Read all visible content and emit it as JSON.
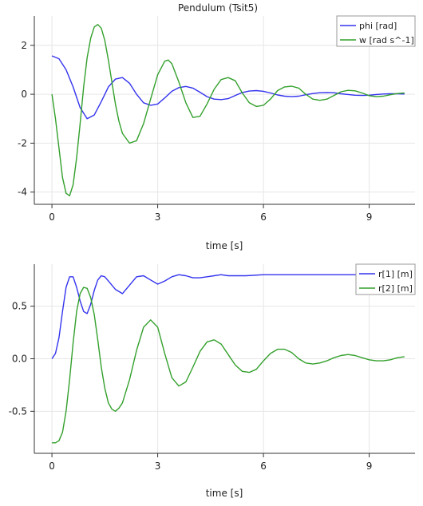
{
  "chart_data": [
    {
      "type": "line",
      "title": "Pendulum (Tsit5)",
      "xlabel": "time [s]",
      "ylabel": "",
      "xlim": [
        -0.5,
        10.3
      ],
      "ylim": [
        -4.5,
        3.2
      ],
      "xticks": [
        0,
        3,
        6,
        9
      ],
      "yticks": [
        -4,
        -2,
        0,
        2
      ],
      "ytick_labels": [
        "-4",
        "-2",
        "0",
        "2"
      ],
      "grid": true,
      "legend": "top-right",
      "series": [
        {
          "name": "phi [rad]",
          "color": "#3333ee",
          "x": [
            0,
            0.2,
            0.4,
            0.6,
            0.8,
            1.0,
            1.2,
            1.4,
            1.6,
            1.8,
            2.0,
            2.2,
            2.4,
            2.6,
            2.8,
            3.0,
            3.2,
            3.4,
            3.6,
            3.8,
            4.0,
            4.2,
            4.4,
            4.6,
            4.8,
            5.0,
            5.2,
            5.4,
            5.6,
            5.8,
            6.0,
            6.2,
            6.4,
            6.6,
            6.8,
            7.0,
            7.2,
            7.4,
            7.6,
            7.8,
            8.0,
            8.2,
            8.4,
            8.6,
            8.8,
            9.0,
            9.2,
            9.4,
            9.6,
            9.8,
            10.0
          ],
          "y": [
            1.57,
            1.45,
            1.0,
            0.3,
            -0.55,
            -1.0,
            -0.85,
            -0.3,
            0.3,
            0.62,
            0.68,
            0.45,
            0.0,
            -0.35,
            -0.45,
            -0.4,
            -0.15,
            0.12,
            0.27,
            0.32,
            0.25,
            0.08,
            -0.1,
            -0.2,
            -0.22,
            -0.18,
            -0.05,
            0.07,
            0.13,
            0.15,
            0.12,
            0.05,
            -0.03,
            -0.08,
            -0.1,
            -0.08,
            -0.02,
            0.03,
            0.06,
            0.07,
            0.06,
            0.02,
            -0.01,
            -0.04,
            -0.05,
            -0.04,
            -0.01,
            0.01,
            0.02,
            0.02,
            0.01
          ]
        },
        {
          "name": "w [rad s^-1]",
          "color": "#33a02c",
          "x": [
            0,
            0.1,
            0.2,
            0.3,
            0.4,
            0.5,
            0.6,
            0.7,
            0.8,
            0.9,
            1.0,
            1.1,
            1.2,
            1.3,
            1.4,
            1.5,
            1.6,
            1.7,
            1.8,
            1.9,
            2.0,
            2.2,
            2.4,
            2.6,
            2.8,
            3.0,
            3.2,
            3.3,
            3.4,
            3.6,
            3.8,
            4.0,
            4.2,
            4.4,
            4.6,
            4.8,
            5.0,
            5.2,
            5.4,
            5.6,
            5.8,
            6.0,
            6.2,
            6.4,
            6.6,
            6.8,
            7.0,
            7.2,
            7.4,
            7.6,
            7.8,
            8.0,
            8.2,
            8.4,
            8.6,
            8.8,
            9.0,
            9.2,
            9.4,
            9.6,
            9.8,
            10.0
          ],
          "y": [
            0.0,
            -1.0,
            -2.2,
            -3.4,
            -4.05,
            -4.15,
            -3.7,
            -2.6,
            -1.2,
            0.3,
            1.5,
            2.3,
            2.75,
            2.85,
            2.7,
            2.2,
            1.4,
            0.5,
            -0.4,
            -1.1,
            -1.6,
            -2.0,
            -1.9,
            -1.2,
            -0.2,
            0.8,
            1.35,
            1.4,
            1.25,
            0.5,
            -0.35,
            -0.95,
            -0.9,
            -0.4,
            0.2,
            0.6,
            0.68,
            0.55,
            0.05,
            -0.35,
            -0.5,
            -0.45,
            -0.2,
            0.15,
            0.3,
            0.33,
            0.25,
            0.0,
            -0.2,
            -0.25,
            -0.2,
            -0.05,
            0.1,
            0.16,
            0.14,
            0.05,
            -0.06,
            -0.1,
            -0.08,
            -0.02,
            0.03,
            0.05
          ]
        }
      ]
    },
    {
      "type": "line",
      "title": "",
      "xlabel": "time [s]",
      "ylabel": "",
      "xlim": [
        -0.5,
        10.3
      ],
      "ylim": [
        -0.9,
        0.9
      ],
      "xticks": [
        0,
        3,
        6,
        9
      ],
      "yticks": [
        -0.5,
        0.0,
        0.5
      ],
      "ytick_labels": [
        "-0.5",
        "0.0",
        "0.5"
      ],
      "grid": true,
      "legend": "top-right",
      "series": [
        {
          "name": "r[1] [m]",
          "color": "#3333ee",
          "x": [
            0,
            0.1,
            0.2,
            0.3,
            0.4,
            0.5,
            0.6,
            0.7,
            0.8,
            0.9,
            1.0,
            1.1,
            1.2,
            1.3,
            1.4,
            1.5,
            1.6,
            1.8,
            2.0,
            2.2,
            2.4,
            2.6,
            2.8,
            3.0,
            3.2,
            3.4,
            3.6,
            3.8,
            4.0,
            4.2,
            4.4,
            4.6,
            4.8,
            5.0,
            5.5,
            6.0,
            6.5,
            7.0,
            7.5,
            8.0,
            8.5,
            9.0,
            9.5,
            10.0
          ],
          "y": [
            0.0,
            0.05,
            0.2,
            0.45,
            0.68,
            0.78,
            0.78,
            0.68,
            0.55,
            0.45,
            0.43,
            0.52,
            0.65,
            0.75,
            0.79,
            0.78,
            0.74,
            0.66,
            0.62,
            0.7,
            0.78,
            0.79,
            0.75,
            0.71,
            0.74,
            0.78,
            0.8,
            0.79,
            0.77,
            0.77,
            0.78,
            0.79,
            0.8,
            0.79,
            0.79,
            0.8,
            0.8,
            0.8,
            0.8,
            0.8,
            0.8,
            0.8,
            0.8,
            0.8
          ]
        },
        {
          "name": "r[2] [m]",
          "color": "#33a02c",
          "x": [
            0,
            0.1,
            0.2,
            0.3,
            0.4,
            0.5,
            0.6,
            0.7,
            0.8,
            0.9,
            1.0,
            1.1,
            1.2,
            1.3,
            1.4,
            1.5,
            1.6,
            1.7,
            1.8,
            1.9,
            2.0,
            2.2,
            2.4,
            2.6,
            2.8,
            3.0,
            3.2,
            3.4,
            3.6,
            3.8,
            4.0,
            4.2,
            4.4,
            4.6,
            4.8,
            5.0,
            5.2,
            5.4,
            5.6,
            5.8,
            6.0,
            6.2,
            6.4,
            6.6,
            6.8,
            7.0,
            7.2,
            7.4,
            7.6,
            7.8,
            8.0,
            8.2,
            8.4,
            8.6,
            8.8,
            9.0,
            9.2,
            9.4,
            9.6,
            9.8,
            10.0
          ],
          "y": [
            -0.8,
            -0.8,
            -0.78,
            -0.7,
            -0.5,
            -0.2,
            0.15,
            0.45,
            0.62,
            0.68,
            0.67,
            0.58,
            0.42,
            0.18,
            -0.08,
            -0.28,
            -0.42,
            -0.48,
            -0.5,
            -0.47,
            -0.42,
            -0.2,
            0.08,
            0.3,
            0.37,
            0.3,
            0.05,
            -0.18,
            -0.26,
            -0.22,
            -0.08,
            0.07,
            0.16,
            0.18,
            0.14,
            0.04,
            -0.06,
            -0.12,
            -0.13,
            -0.1,
            -0.02,
            0.05,
            0.09,
            0.09,
            0.06,
            0.0,
            -0.04,
            -0.05,
            -0.04,
            -0.02,
            0.01,
            0.03,
            0.04,
            0.03,
            0.01,
            -0.01,
            -0.02,
            -0.02,
            -0.01,
            0.01,
            0.02
          ]
        }
      ]
    }
  ]
}
